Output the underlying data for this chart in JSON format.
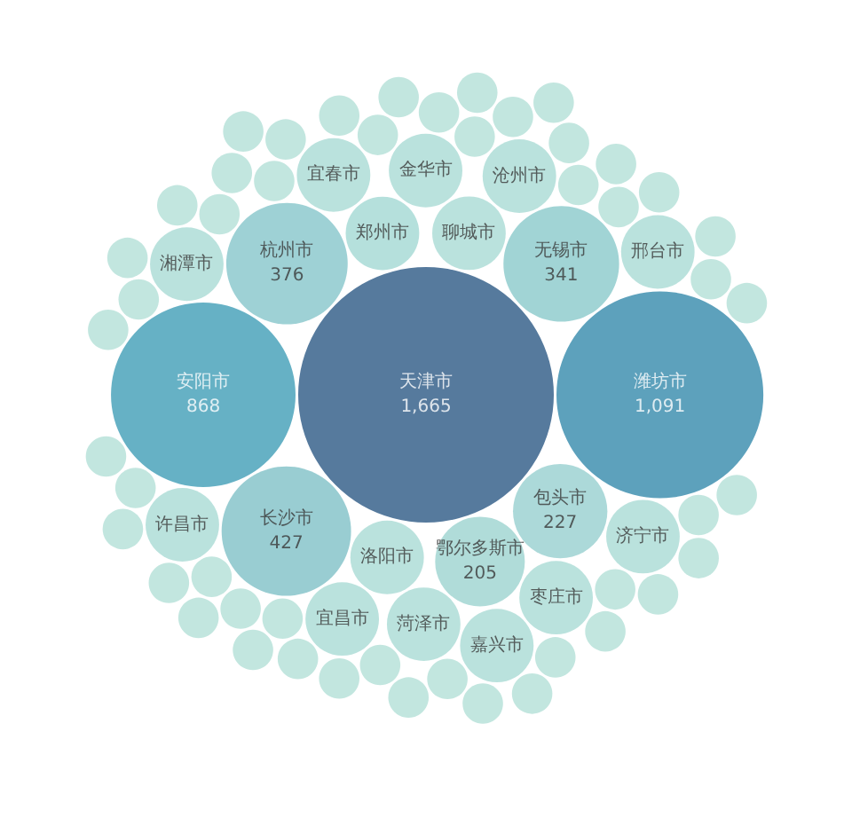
{
  "chart_data": {
    "type": "other",
    "categories": [
      "天津市",
      "潍坊市",
      "安阳市",
      "长沙市",
      "杭州市",
      "无锡市",
      "包头市",
      "鄂尔多斯市",
      "郑州市",
      "聊城市",
      "洛阳市",
      "金华市",
      "菏泽市",
      "沧州市",
      "宜春市",
      "枣庄市",
      "宜昌市",
      "济宁市",
      "嘉兴市",
      "湘潭市",
      "邢台市",
      "许昌市",
      null,
      null,
      null,
      null,
      null,
      null,
      null,
      null,
      null,
      null,
      null,
      null,
      null,
      null,
      null,
      null,
      null,
      null,
      null,
      null,
      null,
      null,
      null,
      null,
      null,
      null,
      null,
      null,
      null,
      null,
      null,
      null,
      null,
      null,
      null,
      null,
      null,
      null,
      null,
      null,
      null,
      null,
      null,
      null,
      null,
      null,
      null,
      null
    ],
    "values": [
      1665,
      1091,
      868,
      427,
      376,
      341,
      227,
      205,
      null,
      null,
      null,
      null,
      null,
      null,
      null,
      null,
      null,
      null,
      null,
      null,
      null,
      null,
      null,
      null,
      null,
      null,
      null,
      null,
      null,
      null,
      null,
      null,
      null,
      null,
      null,
      null,
      null,
      null,
      null,
      null,
      null,
      null,
      null,
      null,
      null,
      null,
      null,
      null,
      null,
      null,
      null,
      null,
      null,
      null,
      null,
      null,
      null,
      null,
      null,
      null,
      null,
      null,
      null,
      null,
      null,
      null,
      null,
      null,
      null,
      null
    ],
    "value_labels": [
      "1,665",
      "1,091",
      "868",
      "427",
      "376",
      "341",
      "227",
      "205",
      null,
      null,
      null,
      null,
      null,
      null,
      null,
      null,
      null,
      null,
      null,
      null,
      null,
      null,
      null,
      null,
      null,
      null,
      null,
      null,
      null,
      null,
      null,
      null,
      null,
      null,
      null,
      null,
      null,
      null,
      null,
      null,
      null,
      null,
      null,
      null,
      null,
      null,
      null,
      null,
      null,
      null,
      null,
      null,
      null,
      null,
      null,
      null,
      null,
      null,
      null,
      null,
      null,
      null,
      null,
      null,
      null,
      null,
      null,
      null,
      null,
      null
    ],
    "colors": [
      "#2c5985",
      "#3489ab",
      "#409db6",
      "#7fc1c7",
      "#86c6ca",
      "#89c9cb",
      "#97d0cf",
      "#9cd3d0",
      "#a3d8d3",
      "#a9dbd5",
      "#a9dbd5",
      "#a9dbd5",
      "#a9dbd5",
      "#a9dbd5",
      "#a9dbd5",
      "#a9dbd5",
      "#a9dbd5",
      "#a9dbd5",
      "#a9dbd5",
      "#a9dbd5",
      "#a9dbd5",
      "#a9dbd5",
      "#b3e0d7",
      "#b3e0d7",
      "#b3e0d7",
      "#b3e0d7",
      "#b3e0d7",
      "#b3e0d7",
      "#b3e0d7",
      "#b3e0d7",
      "#b3e0d7",
      "#b3e0d7",
      "#b3e0d7",
      "#b3e0d7",
      "#b3e0d7",
      "#b3e0d7",
      "#b3e0d7",
      "#b3e0d7",
      "#b3e0d7",
      "#b3e0d7",
      "#b3e0d7",
      "#b3e0d7",
      "#b3e0d7",
      "#b3e0d7",
      "#b3e0d7",
      "#b3e0d7",
      "#b3e0d7",
      "#b3e0d7",
      "#b3e0d7",
      "#b3e0d7",
      "#b3e0d7",
      "#b3e0d7",
      "#b3e0d7",
      "#b3e0d7",
      "#b3e0d7",
      "#b3e0d7",
      "#b3e0d7",
      "#b3e0d7",
      "#b3e0d7",
      "#b3e0d7",
      "#b3e0d7",
      "#b3e0d7",
      "#b3e0d7",
      "#b3e0d7",
      "#b3e0d7",
      "#b3e0d7",
      "#b3e0d7",
      "#b3e0d7",
      "#b3e0d7",
      "#b3e0d7"
    ]
  }
}
